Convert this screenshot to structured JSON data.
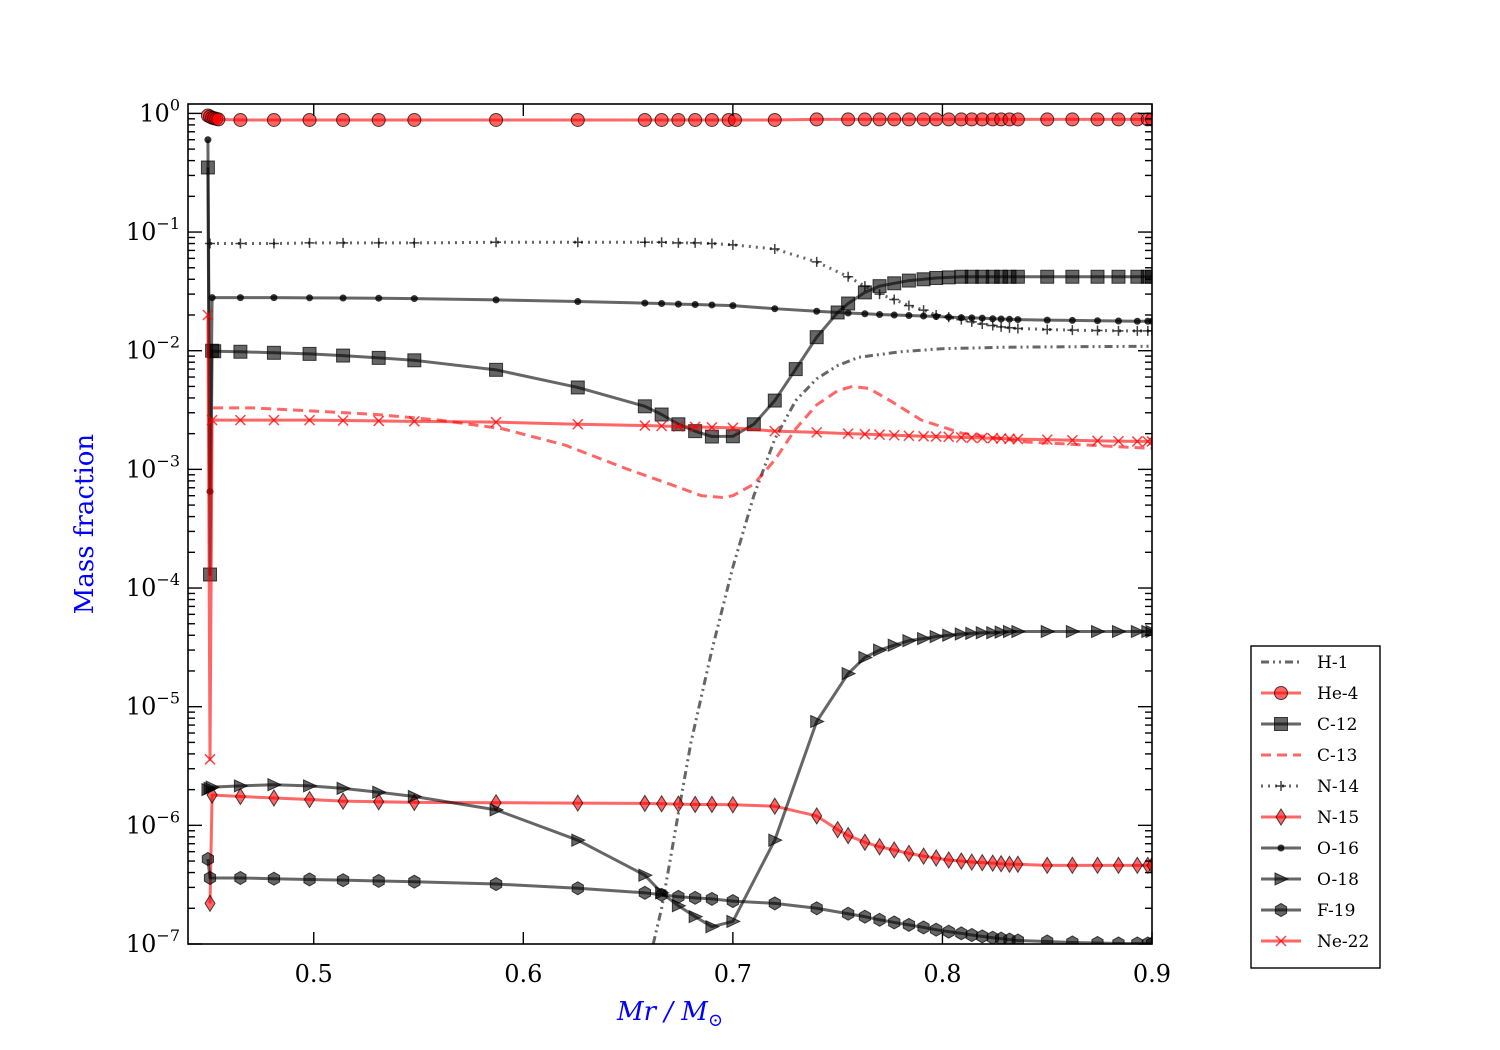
{
  "chart_data": {
    "type": "line",
    "title": "",
    "xlabel": "Mr / M",
    "xlabel_subscript": "⊙",
    "ylabel": "Mass fraction",
    "xscale": "linear",
    "yscale": "log",
    "xlim": [
      0.44,
      0.9
    ],
    "ylim": [
      1e-07,
      1.2
    ],
    "x_ticks": [
      0.5,
      0.6,
      0.7,
      0.8,
      0.9
    ],
    "x_tick_labels": [
      "0.5",
      "0.6",
      "0.7",
      "0.8",
      "0.9"
    ],
    "y_ticks": [
      {
        "value": 1,
        "base": "10",
        "exp": "0"
      },
      {
        "value": 0.1,
        "base": "10",
        "exp": "−1"
      },
      {
        "value": 0.01,
        "base": "10",
        "exp": "−2"
      },
      {
        "value": 0.001,
        "base": "10",
        "exp": "−3"
      },
      {
        "value": 0.0001,
        "base": "10",
        "exp": "−4"
      },
      {
        "value": 1e-05,
        "base": "10",
        "exp": "−5"
      },
      {
        "value": 1e-06,
        "base": "10",
        "exp": "−6"
      },
      {
        "value": 1e-07,
        "base": "10",
        "exp": "−7"
      }
    ],
    "legend_position": "outside-bottom-right",
    "grid": false,
    "series": [
      {
        "name": "H-1",
        "color": "#000000",
        "dash": "dashdotdot",
        "marker": "none",
        "markevery": 0,
        "x": [
          0.662,
          0.666,
          0.67,
          0.675,
          0.68,
          0.69,
          0.7,
          0.71,
          0.72,
          0.73,
          0.74,
          0.75,
          0.76,
          0.78,
          0.8,
          0.83,
          0.86,
          0.9
        ],
        "y": [
          1e-07,
          2e-07,
          5e-07,
          1.6e-06,
          5e-06,
          3e-05,
          0.00015,
          0.0006,
          0.0018,
          0.0038,
          0.0058,
          0.0075,
          0.0088,
          0.0098,
          0.0104,
          0.0107,
          0.0108,
          0.0109
        ]
      },
      {
        "name": "He-4",
        "color": "#ff0000",
        "dash": "solid",
        "marker": "circle",
        "markevery": 1,
        "x": [
          0.4495,
          0.4505,
          0.4515,
          0.4525,
          0.4535,
          0.4545,
          0.465,
          0.481,
          0.498,
          0.514,
          0.531,
          0.548,
          0.587,
          0.626,
          0.658,
          0.666,
          0.674,
          0.682,
          0.69,
          0.698,
          0.701,
          0.72,
          0.74,
          0.755,
          0.763,
          0.77,
          0.777,
          0.784,
          0.791,
          0.797,
          0.803,
          0.809,
          0.814,
          0.819,
          0.824,
          0.828,
          0.832,
          0.836,
          0.85,
          0.862,
          0.874,
          0.884,
          0.893,
          0.898,
          0.9
        ],
        "y": [
          0.96,
          0.94,
          0.92,
          0.91,
          0.9,
          0.89,
          0.88,
          0.88,
          0.88,
          0.88,
          0.88,
          0.88,
          0.88,
          0.88,
          0.88,
          0.88,
          0.88,
          0.88,
          0.88,
          0.88,
          0.88,
          0.88,
          0.89,
          0.89,
          0.89,
          0.89,
          0.89,
          0.89,
          0.89,
          0.89,
          0.89,
          0.89,
          0.89,
          0.89,
          0.89,
          0.89,
          0.89,
          0.89,
          0.89,
          0.89,
          0.89,
          0.89,
          0.89,
          0.89,
          0.89
        ]
      },
      {
        "name": "C-12",
        "color": "#000000",
        "dash": "solid",
        "marker": "square",
        "markevery": 1,
        "x": [
          0.4495,
          0.4505,
          0.4515,
          0.4525,
          0.465,
          0.481,
          0.498,
          0.514,
          0.531,
          0.548,
          0.587,
          0.626,
          0.658,
          0.666,
          0.674,
          0.682,
          0.69,
          0.7,
          0.71,
          0.72,
          0.73,
          0.74,
          0.75,
          0.755,
          0.763,
          0.77,
          0.777,
          0.784,
          0.791,
          0.797,
          0.803,
          0.809,
          0.814,
          0.819,
          0.824,
          0.828,
          0.832,
          0.836,
          0.85,
          0.862,
          0.874,
          0.884,
          0.893,
          0.898,
          0.9
        ],
        "y": [
          0.35,
          0.00013,
          0.01,
          0.0099,
          0.0098,
          0.0096,
          0.0094,
          0.0091,
          0.0087,
          0.0083,
          0.0069,
          0.0049,
          0.0034,
          0.0029,
          0.0024,
          0.0021,
          0.00189,
          0.0019,
          0.0024,
          0.0038,
          0.007,
          0.013,
          0.021,
          0.025,
          0.031,
          0.035,
          0.037,
          0.039,
          0.04,
          0.041,
          0.0415,
          0.042,
          0.042,
          0.042,
          0.042,
          0.042,
          0.042,
          0.042,
          0.042,
          0.042,
          0.042,
          0.042,
          0.042,
          0.042,
          0.042
        ]
      },
      {
        "name": "C-13",
        "color": "#ff0000",
        "dash": "dashed",
        "marker": "none",
        "markevery": 0,
        "x": [
          0.452,
          0.47,
          0.5,
          0.53,
          0.56,
          0.59,
          0.62,
          0.65,
          0.67,
          0.685,
          0.695,
          0.7,
          0.71,
          0.72,
          0.73,
          0.74,
          0.75,
          0.757,
          0.765,
          0.775,
          0.79,
          0.81,
          0.84,
          0.87,
          0.9
        ],
        "y": [
          0.0033,
          0.0033,
          0.0031,
          0.0029,
          0.0026,
          0.0022,
          0.0016,
          0.001,
          0.00075,
          0.0006,
          0.00058,
          0.0006,
          0.00075,
          0.0012,
          0.0022,
          0.0035,
          0.0046,
          0.005,
          0.0048,
          0.0038,
          0.0026,
          0.002,
          0.0017,
          0.0016,
          0.0015
        ]
      },
      {
        "name": "N-14",
        "color": "#000000",
        "dash": "dotted",
        "marker": "plus",
        "markevery": 1,
        "x": [
          0.4505,
          0.465,
          0.481,
          0.498,
          0.514,
          0.531,
          0.548,
          0.587,
          0.626,
          0.658,
          0.666,
          0.674,
          0.682,
          0.69,
          0.7,
          0.72,
          0.74,
          0.755,
          0.763,
          0.77,
          0.777,
          0.784,
          0.791,
          0.797,
          0.803,
          0.809,
          0.814,
          0.819,
          0.824,
          0.828,
          0.832,
          0.836,
          0.85,
          0.862,
          0.874,
          0.884,
          0.893,
          0.898,
          0.9
        ],
        "y": [
          0.08,
          0.08,
          0.08,
          0.081,
          0.081,
          0.081,
          0.081,
          0.082,
          0.082,
          0.082,
          0.082,
          0.081,
          0.081,
          0.08,
          0.078,
          0.072,
          0.056,
          0.042,
          0.035,
          0.03,
          0.027,
          0.024,
          0.022,
          0.02,
          0.0192,
          0.0183,
          0.0175,
          0.0168,
          0.0163,
          0.0159,
          0.0156,
          0.0154,
          0.0151,
          0.0149,
          0.0148,
          0.0147,
          0.0147,
          0.0147,
          0.0147
        ]
      },
      {
        "name": "N-15",
        "color": "#ff0000",
        "dash": "solid",
        "marker": "diamond",
        "markevery": 1,
        "x": [
          0.4505,
          0.4515,
          0.465,
          0.481,
          0.498,
          0.514,
          0.531,
          0.548,
          0.587,
          0.626,
          0.658,
          0.666,
          0.674,
          0.682,
          0.69,
          0.7,
          0.72,
          0.74,
          0.75,
          0.755,
          0.763,
          0.77,
          0.777,
          0.784,
          0.791,
          0.797,
          0.803,
          0.809,
          0.814,
          0.819,
          0.824,
          0.828,
          0.832,
          0.836,
          0.85,
          0.862,
          0.874,
          0.884,
          0.893,
          0.898,
          0.9
        ],
        "y": [
          2.2e-07,
          1.8e-06,
          1.75e-06,
          1.7e-06,
          1.65e-06,
          1.6e-06,
          1.58e-06,
          1.56e-06,
          1.55e-06,
          1.54e-06,
          1.53e-06,
          1.52e-06,
          1.51e-06,
          1.5e-06,
          1.5e-06,
          1.49e-06,
          1.45e-06,
          1.2e-06,
          9.2e-07,
          8.2e-07,
          7.2e-07,
          6.6e-07,
          6.2e-07,
          5.8e-07,
          5.5e-07,
          5.3e-07,
          5.1e-07,
          5e-07,
          4.9e-07,
          4.85e-07,
          4.8e-07,
          4.75e-07,
          4.7e-07,
          4.7e-07,
          4.6e-07,
          4.6e-07,
          4.6e-07,
          4.6e-07,
          4.6e-07,
          4.6e-07,
          4.6e-07
        ]
      },
      {
        "name": "O-16",
        "color": "#000000",
        "dash": "solid",
        "marker": "dot",
        "markevery": 1,
        "x": [
          0.4495,
          0.4505,
          0.4515,
          0.465,
          0.481,
          0.498,
          0.514,
          0.531,
          0.548,
          0.587,
          0.626,
          0.658,
          0.666,
          0.674,
          0.682,
          0.69,
          0.7,
          0.72,
          0.74,
          0.755,
          0.763,
          0.77,
          0.777,
          0.784,
          0.791,
          0.797,
          0.803,
          0.809,
          0.814,
          0.819,
          0.824,
          0.828,
          0.832,
          0.836,
          0.85,
          0.862,
          0.874,
          0.884,
          0.893,
          0.898,
          0.9
        ],
        "y": [
          0.6,
          0.00065,
          0.028,
          0.028,
          0.028,
          0.0279,
          0.0278,
          0.0277,
          0.0275,
          0.0268,
          0.026,
          0.0252,
          0.025,
          0.0247,
          0.0245,
          0.0243,
          0.024,
          0.0226,
          0.0215,
          0.0208,
          0.0205,
          0.0202,
          0.02,
          0.0198,
          0.0196,
          0.0194,
          0.0192,
          0.019,
          0.0189,
          0.0188,
          0.0186,
          0.0185,
          0.0184,
          0.0183,
          0.0181,
          0.018,
          0.0179,
          0.0178,
          0.0177,
          0.0177,
          0.0177
        ]
      },
      {
        "name": "O-18",
        "color": "#000000",
        "dash": "solid",
        "marker": "triangle-right",
        "markevery": 1,
        "x": [
          0.4495,
          0.4505,
          0.4515,
          0.465,
          0.481,
          0.498,
          0.514,
          0.531,
          0.548,
          0.587,
          0.626,
          0.658,
          0.666,
          0.674,
          0.682,
          0.69,
          0.7,
          0.72,
          0.74,
          0.755,
          0.763,
          0.77,
          0.777,
          0.784,
          0.791,
          0.797,
          0.803,
          0.809,
          0.814,
          0.819,
          0.824,
          0.828,
          0.832,
          0.836,
          0.85,
          0.862,
          0.874,
          0.884,
          0.893,
          0.898,
          0.9
        ],
        "y": [
          2e-06,
          2.05e-06,
          2.1e-06,
          2.15e-06,
          2.2e-06,
          2.15e-06,
          2.05e-06,
          1.9e-06,
          1.75e-06,
          1.35e-06,
          7.5e-07,
          3.8e-07,
          2.7e-07,
          2.1e-07,
          1.7e-07,
          1.4e-07,
          1.55e-07,
          7.5e-07,
          7.5e-06,
          1.9e-05,
          2.6e-05,
          3e-05,
          3.3e-05,
          3.6e-05,
          3.75e-05,
          3.9e-05,
          4e-05,
          4.1e-05,
          4.15e-05,
          4.2e-05,
          4.2e-05,
          4.25e-05,
          4.3e-05,
          4.3e-05,
          4.3e-05,
          4.3e-05,
          4.3e-05,
          4.3e-05,
          4.3e-05,
          4.3e-05,
          4.3e-05
        ]
      },
      {
        "name": "F-19",
        "color": "#000000",
        "dash": "solid",
        "marker": "hexagon",
        "markevery": 1,
        "x": [
          0.4495,
          0.4505,
          0.465,
          0.481,
          0.498,
          0.514,
          0.531,
          0.548,
          0.587,
          0.626,
          0.658,
          0.666,
          0.674,
          0.682,
          0.69,
          0.7,
          0.72,
          0.74,
          0.755,
          0.763,
          0.77,
          0.777,
          0.784,
          0.791,
          0.797,
          0.803,
          0.809,
          0.814,
          0.819,
          0.824,
          0.828,
          0.832,
          0.836,
          0.85,
          0.862,
          0.874,
          0.884,
          0.893,
          0.898,
          0.9
        ],
        "y": [
          5.2e-07,
          3.6e-07,
          3.6e-07,
          3.55e-07,
          3.5e-07,
          3.45e-07,
          3.4e-07,
          3.35e-07,
          3.2e-07,
          2.95e-07,
          2.7e-07,
          2.6e-07,
          2.5e-07,
          2.45e-07,
          2.4e-07,
          2.3e-07,
          2.2e-07,
          2e-07,
          1.8e-07,
          1.7e-07,
          1.6e-07,
          1.52e-07,
          1.45e-07,
          1.38e-07,
          1.32e-07,
          1.27e-07,
          1.23e-07,
          1.19e-07,
          1.16e-07,
          1.13e-07,
          1.11e-07,
          1.09e-07,
          1.07e-07,
          1.05e-07,
          1.03e-07,
          1.02e-07,
          1.01e-07,
          1.01e-07,
          1.01e-07,
          1.01e-07
        ]
      },
      {
        "name": "Ne-22",
        "color": "#ff0000",
        "dash": "solid",
        "marker": "x",
        "markevery": 1,
        "x": [
          0.4495,
          0.4505,
          0.4515,
          0.465,
          0.481,
          0.498,
          0.514,
          0.531,
          0.548,
          0.587,
          0.626,
          0.658,
          0.666,
          0.674,
          0.682,
          0.69,
          0.7,
          0.72,
          0.74,
          0.755,
          0.763,
          0.77,
          0.777,
          0.784,
          0.791,
          0.797,
          0.803,
          0.809,
          0.814,
          0.819,
          0.824,
          0.828,
          0.832,
          0.836,
          0.85,
          0.862,
          0.874,
          0.884,
          0.893,
          0.898,
          0.9
        ],
        "y": [
          0.02,
          3.6e-06,
          0.0026,
          0.0026,
          0.0026,
          0.0026,
          0.00258,
          0.00256,
          0.00254,
          0.0025,
          0.0024,
          0.00234,
          0.00232,
          0.0023,
          0.00228,
          0.00226,
          0.00224,
          0.0021,
          0.00205,
          0.002,
          0.00198,
          0.00196,
          0.00194,
          0.00192,
          0.0019,
          0.00189,
          0.00188,
          0.00186,
          0.00185,
          0.00184,
          0.00183,
          0.00182,
          0.00181,
          0.0018,
          0.00178,
          0.00176,
          0.00174,
          0.00173,
          0.00172,
          0.00172,
          0.00172
        ]
      }
    ]
  }
}
